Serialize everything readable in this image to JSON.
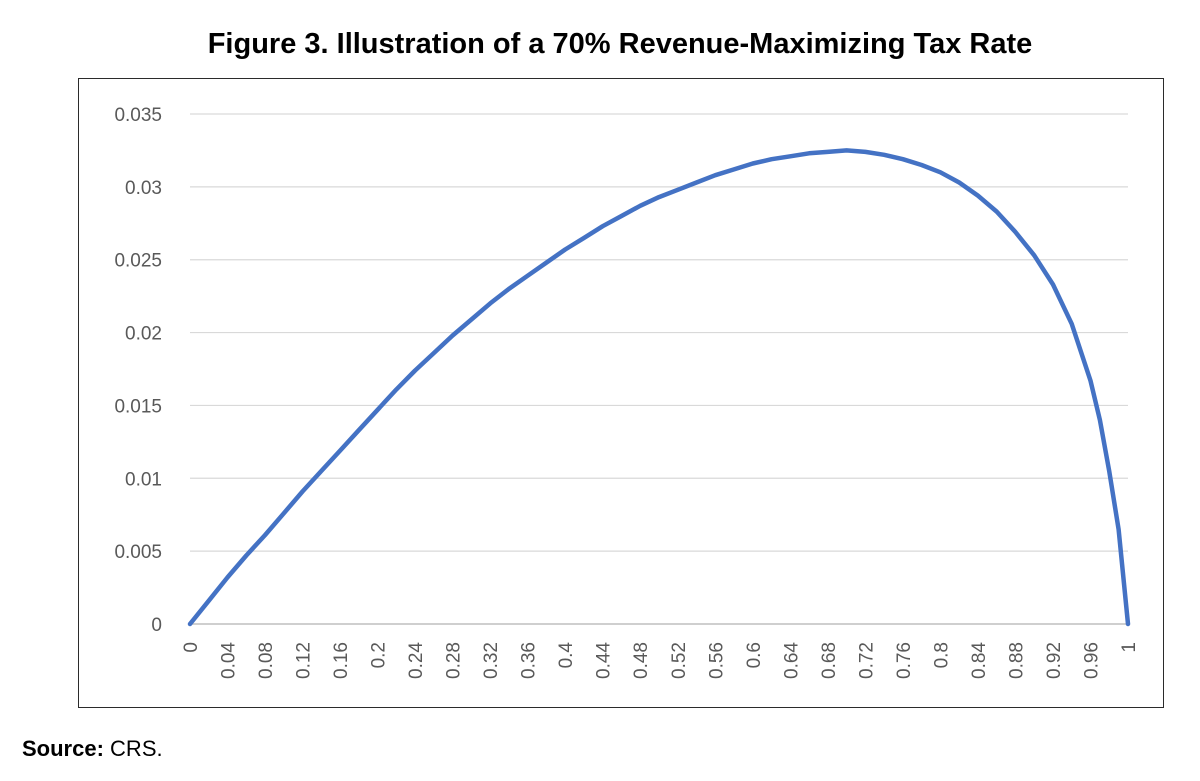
{
  "title": "Figure 3. Illustration of a 70% Revenue-Maximizing Tax Rate",
  "source": {
    "label": "Source:",
    "text": "CRS."
  },
  "chart_data": {
    "type": "line",
    "title": "",
    "xlabel": "",
    "ylabel": "",
    "grid": true,
    "legend": "none",
    "xlim": [
      0,
      1
    ],
    "ylim": [
      0,
      0.035
    ],
    "y_ticks": [
      "0",
      "0.005",
      "0.01",
      "0.015",
      "0.02",
      "0.025",
      "0.03",
      "0.035"
    ],
    "x_ticks": [
      "0",
      "0.04",
      "0.08",
      "0.12",
      "0.16",
      "0.2",
      "0.24",
      "0.28",
      "0.32",
      "0.36",
      "0.4",
      "0.44",
      "0.48",
      "0.52",
      "0.56",
      "0.6",
      "0.64",
      "0.68",
      "0.72",
      "0.76",
      "0.8",
      "0.84",
      "0.88",
      "0.92",
      "0.96",
      "1"
    ],
    "line_color": "#4472c4",
    "series": [
      {
        "x": [
          0,
          0.02,
          0.04,
          0.06,
          0.08,
          0.1,
          0.12,
          0.14,
          0.16,
          0.18,
          0.2,
          0.22,
          0.24,
          0.26,
          0.28,
          0.3,
          0.32,
          0.34,
          0.36,
          0.38,
          0.4,
          0.42,
          0.44,
          0.46,
          0.48,
          0.5,
          0.52,
          0.54,
          0.56,
          0.58,
          0.6,
          0.62,
          0.64,
          0.66,
          0.68,
          0.7,
          0.72,
          0.74,
          0.76,
          0.78,
          0.8,
          0.82,
          0.84,
          0.86,
          0.88,
          0.9,
          0.92,
          0.94,
          0.96,
          0.97,
          0.98,
          0.99,
          1.0
        ],
        "values": [
          0,
          0.0016,
          0.0032,
          0.0047,
          0.0061,
          0.0076,
          0.0091,
          0.0105,
          0.0119,
          0.0133,
          0.0147,
          0.0161,
          0.0174,
          0.0186,
          0.0198,
          0.0209,
          0.022,
          0.023,
          0.0239,
          0.0248,
          0.0257,
          0.0265,
          0.0273,
          0.028,
          0.0287,
          0.0293,
          0.0298,
          0.0303,
          0.0308,
          0.0312,
          0.0316,
          0.0319,
          0.0321,
          0.0323,
          0.0324,
          0.0325,
          0.0324,
          0.0322,
          0.0319,
          0.0315,
          0.031,
          0.0303,
          0.0294,
          0.0283,
          0.0269,
          0.0253,
          0.0233,
          0.0206,
          0.0167,
          0.014,
          0.0105,
          0.0065,
          0
        ]
      }
    ]
  }
}
